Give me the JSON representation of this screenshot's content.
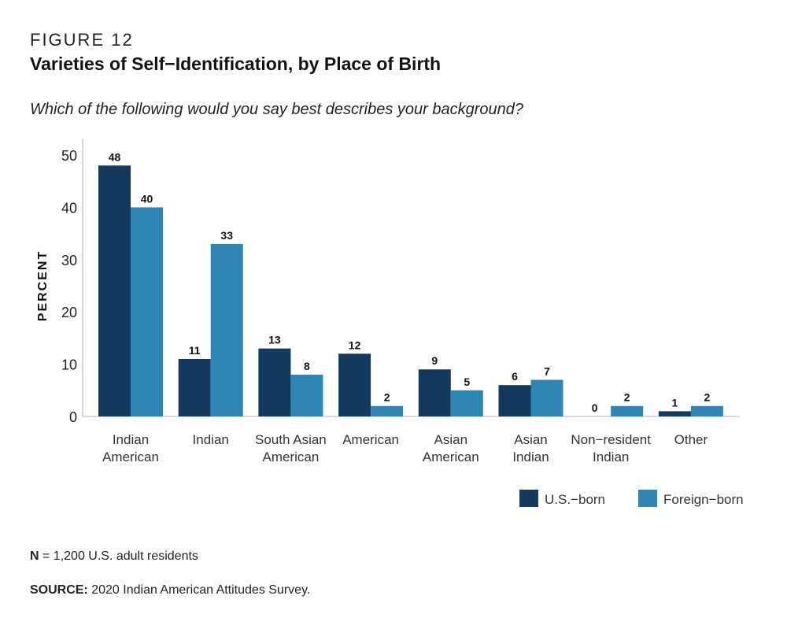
{
  "figure_label": "FIGURE 12",
  "title": "Varieties of Self−Identification, by Place of Birth",
  "subtitle": "Which of the following would you say best describes your background?",
  "colors": {
    "us_born": "#133a5e",
    "foreign_born": "#2e86b5"
  },
  "chart_data": {
    "type": "bar",
    "categories": [
      [
        "Indian",
        "American"
      ],
      [
        "Indian"
      ],
      [
        "South Asian",
        "American"
      ],
      [
        "American"
      ],
      [
        "Asian",
        "American"
      ],
      [
        "Asian",
        "Indian"
      ],
      [
        "Non−resident",
        "Indian"
      ],
      [
        "Other"
      ]
    ],
    "series": [
      {
        "name": "U.S.−born",
        "values": [
          48,
          11,
          13,
          12,
          9,
          6,
          0,
          1
        ]
      },
      {
        "name": "Foreign−born",
        "values": [
          40,
          33,
          8,
          2,
          5,
          7,
          2,
          2
        ]
      }
    ],
    "ylabel": "PERCENT",
    "ylim": [
      0,
      50
    ],
    "yticks": [
      0,
      10,
      20,
      30,
      40,
      50
    ],
    "grid": false,
    "legend_position": "bottom-right"
  },
  "notes": {
    "n_label": "N",
    "n_text": " = 1,200 U.S. adult residents",
    "source_label": "SOURCE:",
    "source_text": " 2020 Indian American Attitudes Survey."
  }
}
